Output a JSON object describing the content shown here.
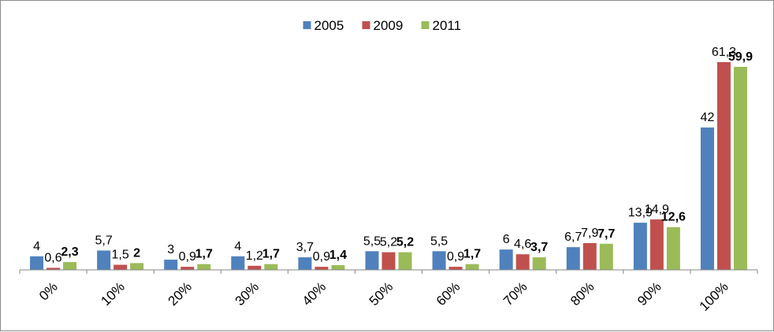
{
  "chart_data": {
    "type": "bar",
    "categories": [
      "0%",
      "10%",
      "20%",
      "30%",
      "40%",
      "50%",
      "60%",
      "70%",
      "80%",
      "90%",
      "100%"
    ],
    "series": [
      {
        "name": "2005",
        "color": "#4f81bd",
        "values": [
          4,
          5.7,
          3,
          4,
          3.7,
          5.5,
          5.5,
          6,
          6.7,
          13.9,
          42
        ],
        "labels": [
          "4",
          "5,7",
          "3",
          "4",
          "3,7",
          "5,5",
          "5,5",
          "6",
          "6,7",
          "13,9",
          "42"
        ],
        "label_bold": false
      },
      {
        "name": "2009",
        "color": "#c0504d",
        "values": [
          0.6,
          1.5,
          0.9,
          1.2,
          0.9,
          5.2,
          0.9,
          4.6,
          7.9,
          14.9,
          61.3
        ],
        "labels": [
          "0,6",
          "1,5",
          "0,9",
          "1,2",
          "0,9",
          "5,2",
          "0,9",
          "4,6",
          "7,9",
          "14,9",
          "61,3"
        ],
        "label_bold": false
      },
      {
        "name": "2011",
        "color": "#9bbb59",
        "values": [
          2.3,
          2,
          1.7,
          1.7,
          1.4,
          5.2,
          1.7,
          3.7,
          7.7,
          12.6,
          59.9
        ],
        "labels": [
          "2,3",
          "2",
          "1,7",
          "1,7",
          "1,4",
          "5,2",
          "1,7",
          "3,7",
          "7,7",
          "12,6",
          "59,9"
        ],
        "label_bold": true
      }
    ],
    "title": "",
    "xlabel": "",
    "ylabel": "",
    "ylim": [
      0,
      65
    ],
    "grid": false,
    "legend_position": "top-center",
    "x_tick_rotation": "diagonal"
  }
}
